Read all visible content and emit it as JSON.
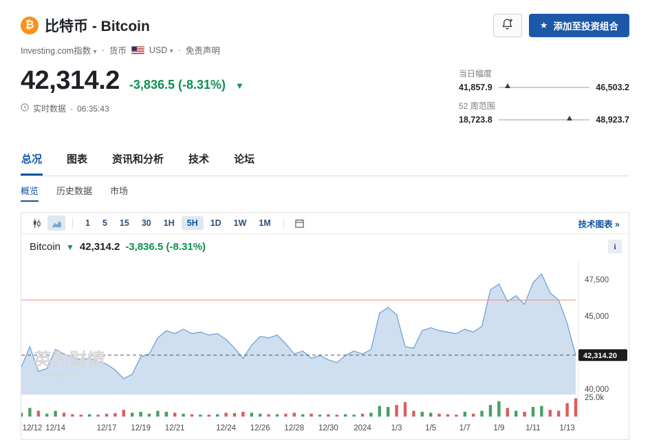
{
  "colors": {
    "accent_blue": "#1256a0",
    "button_blue": "#1c58a7",
    "brand_orange": "#f7931a",
    "down_green": "#0a9150",
    "line": "#6fa3d8",
    "area_fill": "rgba(128,170,215,0.38)",
    "resistance": "#f09694",
    "vol_up": "#4b9e65",
    "vol_down": "#d95f5f",
    "badge_bg": "#1c1c1c"
  },
  "header": {
    "coin_symbol": "₿",
    "title": "比特币 - Bitcoin",
    "index_label": "Investing.com指数",
    "caret": "▾",
    "separator": "·",
    "currency_label": "货币",
    "currency_code": "USD",
    "disclaimer_label": "免责声明",
    "add_portfolio_star": "★",
    "add_portfolio_label": "添加至投资组合"
  },
  "quote": {
    "price": "42,314.2",
    "change": "-3,836.5 (-8.31%)",
    "arrow": "▼",
    "realtime_label": "实时数据",
    "separator": "·",
    "time": "06:35:43"
  },
  "ranges": {
    "day_label": "当日幅度",
    "day_low": "41,857.9",
    "day_high": "46,503.2",
    "day_pos": 10,
    "week52_label": "52 周范围",
    "week52_low": "18,723.8",
    "week52_high": "48,923.7",
    "week52_pos": 78
  },
  "tabs": [
    {
      "label": "总况",
      "active": true
    },
    {
      "label": "图表",
      "active": false
    },
    {
      "label": "资讯和分析",
      "active": false
    },
    {
      "label": "技术",
      "active": false
    },
    {
      "label": "论坛",
      "active": false
    }
  ],
  "subtabs": [
    {
      "label": "概览",
      "active": true
    },
    {
      "label": "历史数据",
      "active": false
    },
    {
      "label": "市场",
      "active": false
    }
  ],
  "toolbar": {
    "intervals": [
      {
        "label": "1",
        "selected": false
      },
      {
        "label": "5",
        "selected": false
      },
      {
        "label": "15",
        "selected": false
      },
      {
        "label": "30",
        "selected": false
      },
      {
        "label": "1H",
        "selected": false
      },
      {
        "label": "5H",
        "selected": true
      },
      {
        "label": "1D",
        "selected": false
      },
      {
        "label": "1W",
        "selected": false
      },
      {
        "label": "1M",
        "selected": false
      }
    ],
    "tech_chart_label": "技术图表 »"
  },
  "chart_legend": {
    "name": "Bitcoin",
    "arrow": "▼",
    "price": "42,314.2",
    "change": "-3,836.5 (-8.31%)",
    "info_icon": "i"
  },
  "chart_data": {
    "type": "area",
    "symbol": "Bitcoin",
    "last": 42314.2,
    "current_price_label": "42,314.20",
    "ylim": [
      39800,
      48500
    ],
    "resistance_level": 46100,
    "y_ticks": [
      {
        "value": 47500,
        "label": "47,500"
      },
      {
        "value": 45000,
        "label": "45,000"
      },
      {
        "value": 40000,
        "label": "40,000"
      }
    ],
    "volume_axis_label": "25.0k",
    "watermark": "英为财情",
    "watermark_sub": "Investing.com",
    "x_labels": [
      {
        "i": 0,
        "label": "12/12"
      },
      {
        "i": 4,
        "label": "12/14"
      },
      {
        "i": 10,
        "label": "12/17"
      },
      {
        "i": 14,
        "label": "12/19"
      },
      {
        "i": 18,
        "label": "12/21"
      },
      {
        "i": 24,
        "label": "12/24"
      },
      {
        "i": 28,
        "label": "12/26"
      },
      {
        "i": 32,
        "label": "12/28"
      },
      {
        "i": 36,
        "label": "12/30"
      },
      {
        "i": 40,
        "label": "2024"
      },
      {
        "i": 44,
        "label": "1/3"
      },
      {
        "i": 48,
        "label": "1/5"
      },
      {
        "i": 52,
        "label": "1/7"
      },
      {
        "i": 56,
        "label": "1/9"
      },
      {
        "i": 60,
        "label": "1/11"
      },
      {
        "i": 64,
        "label": "1/13"
      }
    ],
    "prices": [
      41500,
      42900,
      41200,
      41400,
      42700,
      42400,
      42200,
      42000,
      42100,
      41900,
      41700,
      41300,
      40700,
      41000,
      42200,
      42400,
      43500,
      44000,
      43800,
      44100,
      43800,
      43900,
      43700,
      43800,
      43400,
      42800,
      42100,
      43000,
      43600,
      43500,
      43700,
      43100,
      42400,
      42600,
      42100,
      42300,
      42000,
      41800,
      42300,
      42600,
      42400,
      42700,
      45200,
      45600,
      45100,
      42900,
      42800,
      44000,
      44200,
      44000,
      43900,
      43800,
      44100,
      43900,
      44300,
      46800,
      47200,
      46000,
      46400,
      45800,
      47300,
      47900,
      46600,
      46100,
      44500,
      42314
    ],
    "volumes": [
      0.2,
      0.45,
      0.3,
      0.15,
      0.3,
      0.2,
      0.12,
      0.1,
      0.12,
      0.1,
      0.15,
      0.18,
      0.35,
      0.2,
      0.25,
      0.15,
      0.3,
      0.25,
      0.2,
      0.15,
      0.12,
      0.1,
      0.1,
      0.12,
      0.2,
      0.18,
      0.25,
      0.2,
      0.15,
      0.12,
      0.12,
      0.15,
      0.2,
      0.12,
      0.15,
      0.1,
      0.12,
      0.1,
      0.12,
      0.1,
      0.15,
      0.2,
      0.55,
      0.5,
      0.6,
      0.75,
      0.3,
      0.25,
      0.2,
      0.15,
      0.12,
      0.1,
      0.25,
      0.15,
      0.3,
      0.6,
      0.8,
      0.45,
      0.3,
      0.25,
      0.5,
      0.55,
      0.35,
      0.3,
      0.7,
      0.95
    ]
  }
}
